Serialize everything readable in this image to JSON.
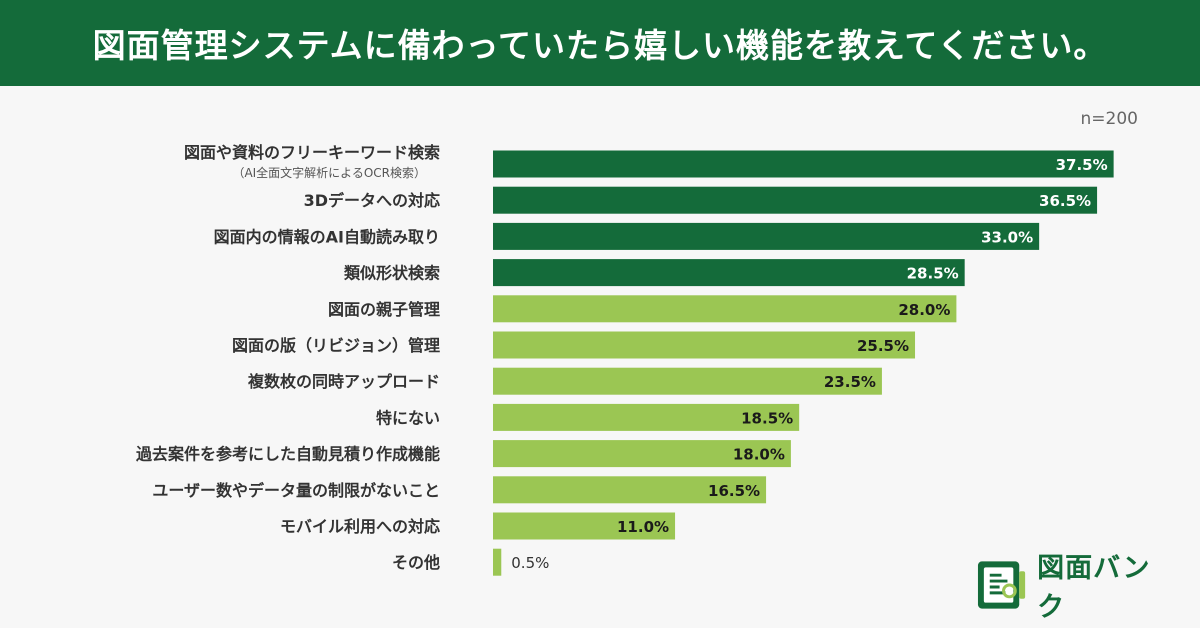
{
  "header": {
    "title": "図面管理システムに備わっていたら嬉しい機能を教えてください。"
  },
  "sample_note": "n=200",
  "brand": {
    "name": "図面バンク",
    "dark_green": "#146b3a",
    "light_green": "#9bc653"
  },
  "chart_data": {
    "type": "bar",
    "orientation": "horizontal",
    "title": "図面管理システムに備わっていたら嬉しい機能を教えてください。",
    "xlabel": "",
    "ylabel": "",
    "xlim": [
      0,
      40
    ],
    "sample_size": "n=200",
    "categories": [
      "図面や資料のフリーキーワード検索",
      "3Dデータへの対応",
      "図面内の情報のAI自動読み取り",
      "類似形状検索",
      "図面の親子管理",
      "図面の版（リビジョン）管理",
      "複数枚の同時アップロード",
      "特にない",
      "過去案件を参考にした自動見積り作成機能",
      "ユーザー数やデータ量の制限がないこと",
      "モバイル利用への対応",
      "その他"
    ],
    "subtitles": [
      "（AI全面文字解析によるOCR検索）",
      "",
      "",
      "",
      "",
      "",
      "",
      "",
      "",
      "",
      "",
      ""
    ],
    "values": [
      37.5,
      36.5,
      33.0,
      28.5,
      28.0,
      25.5,
      23.5,
      18.5,
      18.0,
      16.5,
      11.0,
      0.5
    ],
    "value_labels": [
      "37.5%",
      "36.5%",
      "33.0%",
      "28.5%",
      "28.0%",
      "25.5%",
      "23.5%",
      "18.5%",
      "18.0%",
      "16.5%",
      "11.0%",
      "0.5%"
    ],
    "highlight_top_n": 4,
    "colors": {
      "top": "#146b3a",
      "rest": "#9bc653"
    }
  }
}
